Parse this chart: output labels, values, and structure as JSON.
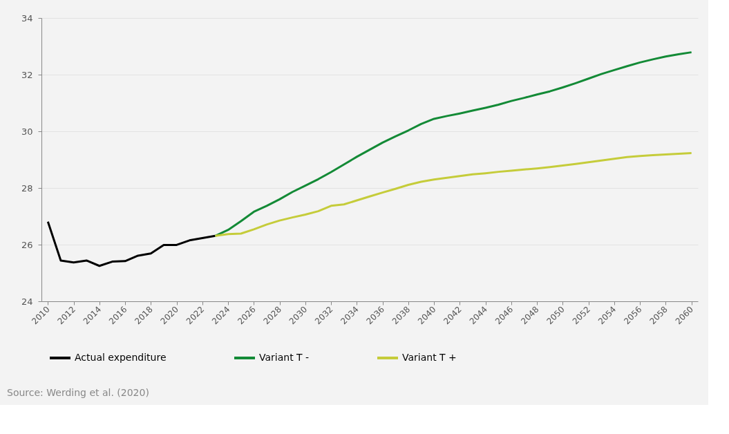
{
  "chart_data": {
    "type": "line",
    "xlim": [
      2009.5,
      2060.5
    ],
    "xticks": [
      2010,
      2012,
      2014,
      2016,
      2018,
      2020,
      2022,
      2024,
      2026,
      2028,
      2030,
      2032,
      2034,
      2036,
      2038,
      2040,
      2042,
      2044,
      2046,
      2048,
      2050,
      2052,
      2054,
      2056,
      2058,
      2060
    ],
    "ylim": [
      24,
      34
    ],
    "yticks": [
      24,
      26,
      28,
      30,
      32,
      34
    ],
    "grid": "y",
    "legend": "bottom",
    "marker": "none",
    "line_style": "solid",
    "annotations": [
      "Source: Werding et al. (2020)"
    ],
    "series": [
      {
        "name": "Actual expenditure",
        "color": "#000000",
        "x": [
          2010,
          2011,
          2012,
          2013,
          2014,
          2015,
          2016,
          2017,
          2018,
          2019,
          2020,
          2021,
          2022,
          2023
        ],
        "values": [
          26.81,
          25.44,
          25.37,
          25.44,
          25.25,
          25.4,
          25.42,
          25.61,
          25.69,
          25.99,
          25.99,
          26.15,
          26.23,
          26.31
        ]
      },
      {
        "name": "Variant T -",
        "color": "#138a36",
        "x": [
          2023,
          2024,
          2025,
          2026,
          2027,
          2028,
          2029,
          2030,
          2031,
          2032,
          2033,
          2034,
          2035,
          2036,
          2037,
          2038,
          2039,
          2040,
          2041,
          2042,
          2043,
          2044,
          2045,
          2046,
          2047,
          2048,
          2049,
          2050,
          2051,
          2052,
          2053,
          2054,
          2055,
          2056,
          2057,
          2058,
          2059,
          2060
        ],
        "values": [
          26.31,
          26.52,
          26.83,
          27.16,
          27.37,
          27.6,
          27.86,
          28.08,
          28.31,
          28.56,
          28.83,
          29.1,
          29.35,
          29.6,
          29.82,
          30.03,
          30.26,
          30.44,
          30.54,
          30.63,
          30.73,
          30.83,
          30.94,
          31.07,
          31.18,
          31.3,
          31.41,
          31.55,
          31.7,
          31.86,
          32.02,
          32.16,
          32.3,
          32.43,
          32.54,
          32.64,
          32.72,
          32.79
        ]
      },
      {
        "name": "Variant T +",
        "color": "#c5cc3a",
        "x": [
          2023,
          2024,
          2025,
          2026,
          2027,
          2028,
          2029,
          2030,
          2031,
          2032,
          2033,
          2034,
          2035,
          2036,
          2037,
          2038,
          2039,
          2040,
          2041,
          2042,
          2043,
          2044,
          2045,
          2046,
          2047,
          2048,
          2049,
          2050,
          2051,
          2052,
          2053,
          2054,
          2055,
          2056,
          2057,
          2058,
          2059,
          2060
        ],
        "values": [
          26.31,
          26.37,
          26.39,
          26.54,
          26.71,
          26.85,
          26.96,
          27.06,
          27.18,
          27.37,
          27.42,
          27.56,
          27.7,
          27.84,
          27.97,
          28.11,
          28.22,
          28.3,
          28.36,
          28.42,
          28.48,
          28.52,
          28.57,
          28.61,
          28.65,
          28.69,
          28.74,
          28.79,
          28.85,
          28.91,
          28.97,
          29.03,
          29.09,
          29.13,
          29.16,
          29.18,
          29.21,
          29.23
        ]
      }
    ]
  }
}
